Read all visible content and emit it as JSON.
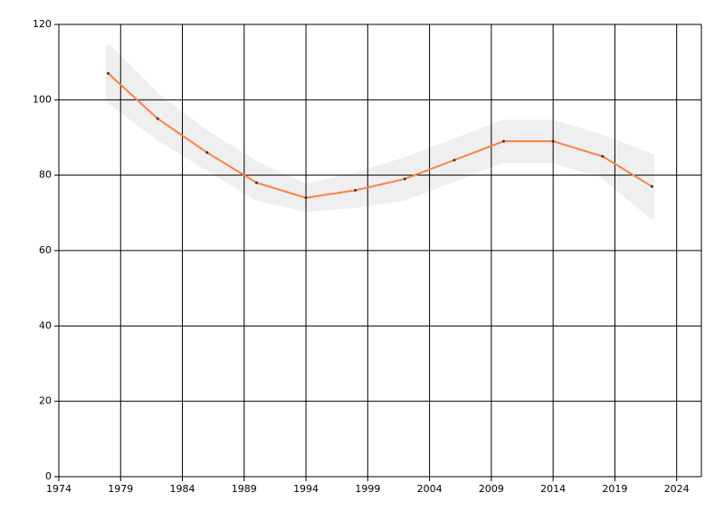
{
  "chart_data": {
    "type": "line",
    "x": [
      1978,
      1982,
      1986,
      1990,
      1994,
      1998,
      2002,
      2006,
      2010,
      2014,
      2018,
      2022
    ],
    "values": [
      107,
      95,
      86,
      78,
      74,
      76,
      79,
      84,
      89,
      89,
      85,
      77
    ],
    "color": "#ff7f3f",
    "band": {
      "upper": [
        114,
        101,
        91,
        83,
        77,
        80,
        84,
        89,
        94,
        94,
        90,
        85
      ],
      "lower": [
        100,
        90,
        82,
        74,
        71,
        72,
        74,
        79,
        84,
        84,
        80,
        69
      ],
      "color": "#efefef"
    },
    "xlim": [
      1974,
      2026
    ],
    "xticks": [
      1974,
      1979,
      1984,
      1989,
      1994,
      1999,
      2004,
      2009,
      2014,
      2019,
      2024
    ],
    "ylim": [
      0,
      120
    ],
    "yticks": [
      0,
      20,
      40,
      60,
      80,
      100,
      120
    ],
    "grid": true
  }
}
